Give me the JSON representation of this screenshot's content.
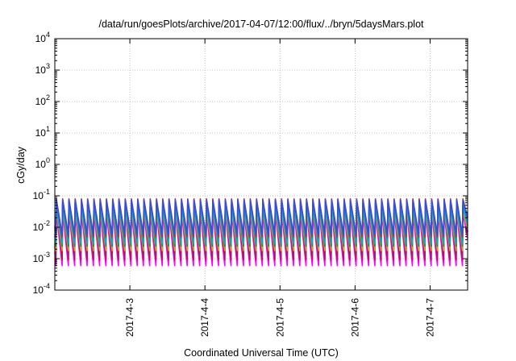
{
  "chart_data": {
    "type": "line",
    "title": "/data/run/goesPlots/archive/2017-04-07/12:00/flux/../bryn/5daysMars.plot",
    "xlabel": "Coordinated Universal Time (UTC)",
    "ylabel": "cGy/day",
    "yscale": "log",
    "ylim": [
      0.0001,
      10000
    ],
    "xlim": [
      "2017-04-02 00:00",
      "2017-04-07 12:00"
    ],
    "grid": true,
    "x_ticks": [
      {
        "label": "2017-4-3",
        "at": "2017-04-03 00:00"
      },
      {
        "label": "2017-4-4",
        "at": "2017-04-04 00:00"
      },
      {
        "label": "2017-4-5",
        "at": "2017-04-05 00:00"
      },
      {
        "label": "2017-4-6",
        "at": "2017-04-06 00:00"
      },
      {
        "label": "2017-4-7",
        "at": "2017-04-07 00:00"
      }
    ],
    "y_ticks": [
      {
        "base": "10",
        "exp": "-4"
      },
      {
        "base": "10",
        "exp": "-3"
      },
      {
        "base": "10",
        "exp": "-2"
      },
      {
        "base": "10",
        "exp": "-1"
      },
      {
        "base": "10",
        "exp": "0"
      },
      {
        "base": "10",
        "exp": "1"
      },
      {
        "base": "10",
        "exp": "2"
      },
      {
        "base": "10",
        "exp": "3"
      },
      {
        "base": "10",
        "exp": "4"
      }
    ],
    "sawtooth": {
      "cycles_per_day": 12,
      "first_peak": "2017-04-02 00:30"
    },
    "series": [
      {
        "color": "#ff00ff",
        "peak": 0.03,
        "trough": 0.0006
      },
      {
        "color": "#d0006a",
        "peak": 0.055,
        "trough": 0.0009
      },
      {
        "color": "#a02060",
        "peak": 0.045,
        "trough": 0.0012
      },
      {
        "color": "#d4a020",
        "peak": 0.035,
        "trough": 0.0018
      },
      {
        "color": "#009a50",
        "peak": 0.05,
        "trough": 0.0025
      },
      {
        "color": "#00b0c0",
        "peak": 0.045,
        "trough": 0.003
      },
      {
        "color": "#0090e0",
        "peak": 0.06,
        "trough": 0.0045
      },
      {
        "color": "#e02020",
        "peak": 0.08,
        "trough": 0.005
      },
      {
        "color": "#3050e0",
        "peak": 0.075,
        "trough": 0.006
      }
    ]
  }
}
